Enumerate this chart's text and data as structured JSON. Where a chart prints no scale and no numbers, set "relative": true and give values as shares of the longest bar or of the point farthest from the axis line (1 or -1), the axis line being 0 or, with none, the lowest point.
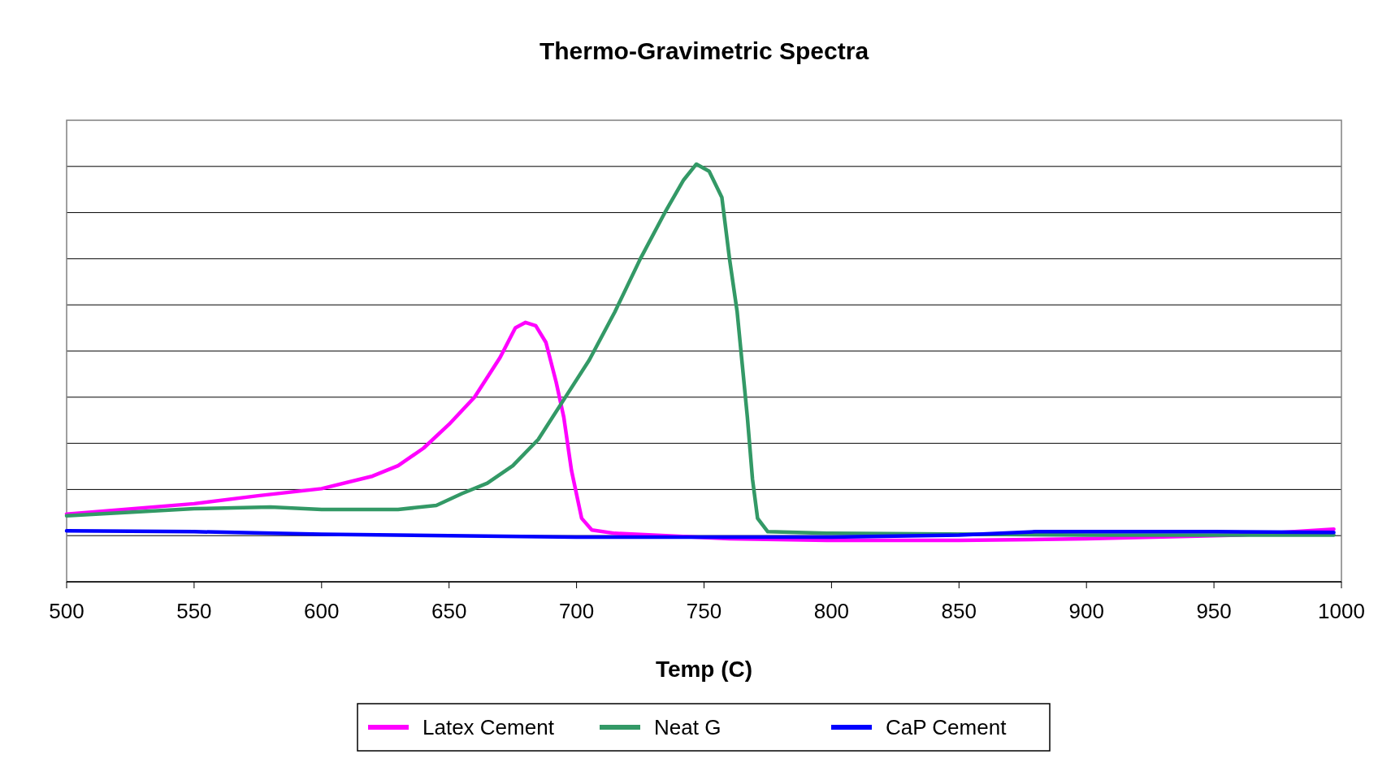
{
  "chart_data": {
    "type": "line",
    "title": "Thermo-Gravimetric Spectra",
    "xlabel": "Temp (C)",
    "relative": true,
    "xlim": [
      500,
      1000
    ],
    "xticks": [
      500,
      550,
      600,
      650,
      700,
      750,
      800,
      850,
      900,
      950,
      1000
    ],
    "grid": "y",
    "legend": "bottom",
    "line_style": "solid",
    "series": [
      {
        "name": "Latex Cement",
        "color": "#ff00ff",
        "x": [
          500,
          550,
          575,
          600,
          620,
          630,
          640,
          650,
          660,
          670,
          676,
          680,
          684,
          688,
          692,
          695,
          698,
          702,
          706,
          715,
          740,
          760,
          800,
          850,
          900,
          960,
          997
        ],
        "values": [
          0.162,
          0.187,
          0.206,
          0.223,
          0.253,
          0.278,
          0.32,
          0.377,
          0.442,
          0.537,
          0.608,
          0.621,
          0.613,
          0.573,
          0.478,
          0.394,
          0.267,
          0.152,
          0.124,
          0.116,
          0.109,
          0.103,
          0.099,
          0.099,
          0.103,
          0.112,
          0.126
        ]
      },
      {
        "name": "Neat G",
        "color": "#339966",
        "x": [
          500,
          550,
          580,
          600,
          630,
          645,
          655,
          665,
          675,
          685,
          695,
          705,
          715,
          725,
          735,
          742,
          747,
          752,
          757,
          760,
          763,
          765,
          767,
          769,
          771,
          775,
          800,
          900,
          997
        ],
        "values": [
          0.158,
          0.175,
          0.179,
          0.173,
          0.173,
          0.183,
          0.211,
          0.236,
          0.278,
          0.341,
          0.436,
          0.531,
          0.646,
          0.773,
          0.888,
          0.962,
          1,
          0.983,
          0.92,
          0.773,
          0.646,
          0.52,
          0.394,
          0.246,
          0.152,
          0.12,
          0.116,
          0.112,
          0.112
        ]
      },
      {
        "name": "CaP Cement",
        "color": "#0000ff",
        "x": [
          500,
          550,
          600,
          700,
          750,
          800,
          850,
          880,
          950,
          997
        ],
        "values": [
          0.122,
          0.12,
          0.114,
          0.107,
          0.107,
          0.107,
          0.112,
          0.12,
          0.12,
          0.118
        ]
      }
    ]
  }
}
